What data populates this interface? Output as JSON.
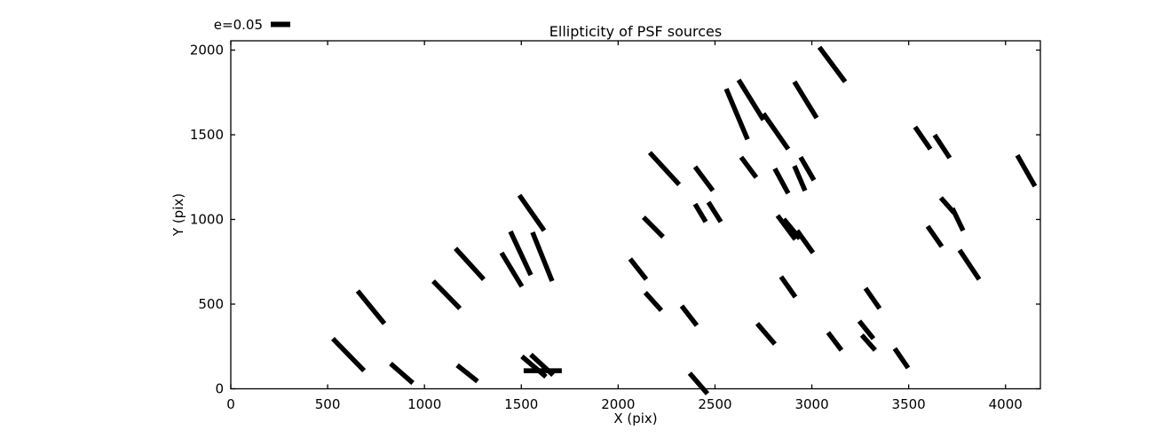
{
  "chart_data": {
    "type": "scatter",
    "subtype": "ellipticity-whisker-map",
    "title": "Ellipticity of PSF sources",
    "xlabel": "X (pix)",
    "ylabel": "Y (pix)",
    "xlim": [
      0,
      4180
    ],
    "ylim": [
      0,
      2055
    ],
    "x_ticks": [
      0,
      500,
      1000,
      1500,
      2000,
      2500,
      3000,
      3500,
      4000
    ],
    "y_ticks": [
      0,
      500,
      1000,
      1500,
      2000
    ],
    "grid": false,
    "legend": {
      "label": "e=0.05",
      "e_value": 0.05,
      "position": "above-axes-top-left"
    },
    "whisker_color": "#000000",
    "frame_color": "#000000",
    "whiskers": [
      [
        2558,
        1771,
        2668,
        1473
      ],
      [
        2622,
        1824,
        2750,
        1588
      ],
      [
        2750,
        1625,
        2878,
        1415
      ],
      [
        2910,
        1813,
        3025,
        1599
      ],
      [
        3039,
        2017,
        3172,
        1813
      ],
      [
        2163,
        1395,
        2315,
        1206
      ],
      [
        2397,
        1311,
        2489,
        1170
      ],
      [
        2635,
        1368,
        2713,
        1248
      ],
      [
        3533,
        1546,
        3612,
        1415
      ],
      [
        3634,
        1499,
        3712,
        1363
      ],
      [
        4061,
        1379,
        4152,
        1196
      ],
      [
        2809,
        1300,
        2878,
        1154
      ],
      [
        2910,
        1316,
        2965,
        1170
      ],
      [
        2942,
        1368,
        3011,
        1232
      ],
      [
        3666,
        1128,
        3735,
        1039
      ],
      [
        3726,
        1065,
        3781,
        934
      ],
      [
        2823,
        1023,
        2915,
        882
      ],
      [
        2855,
        1002,
        2938,
        887
      ],
      [
        2924,
        934,
        3006,
        803
      ],
      [
        3598,
        960,
        3671,
        840
      ],
      [
        3763,
        819,
        3864,
        646
      ],
      [
        2841,
        662,
        2915,
        542
      ],
      [
        3277,
        594,
        3350,
        474
      ],
      [
        2718,
        385,
        2809,
        264
      ],
      [
        3084,
        332,
        3153,
        228
      ],
      [
        3245,
        400,
        3318,
        296
      ],
      [
        3258,
        317,
        3327,
        228
      ],
      [
        3428,
        238,
        3497,
        123
      ],
      [
        1160,
        829,
        1306,
        646
      ],
      [
        1045,
        636,
        1183,
        474
      ],
      [
        655,
        578,
        793,
        385
      ],
      [
        527,
        296,
        688,
        107
      ],
      [
        825,
        149,
        940,
        34
      ],
      [
        1169,
        139,
        1274,
        44
      ],
      [
        1490,
        1143,
        1618,
        934
      ],
      [
        1444,
        929,
        1549,
        672
      ],
      [
        1558,
        924,
        1659,
        636
      ],
      [
        1398,
        803,
        1503,
        604
      ],
      [
        2131,
        1013,
        2232,
        897
      ],
      [
        2397,
        1091,
        2452,
        986
      ],
      [
        2466,
        1102,
        2530,
        986
      ],
      [
        2062,
        767,
        2145,
        646
      ],
      [
        2140,
        568,
        2223,
        463
      ],
      [
        2328,
        489,
        2406,
        374
      ],
      [
        2369,
        92,
        2461,
        -29
      ],
      [
        1512,
        107,
        1709,
        107
      ],
      [
        1503,
        191,
        1627,
        71
      ],
      [
        1549,
        202,
        1664,
        81
      ]
    ]
  }
}
